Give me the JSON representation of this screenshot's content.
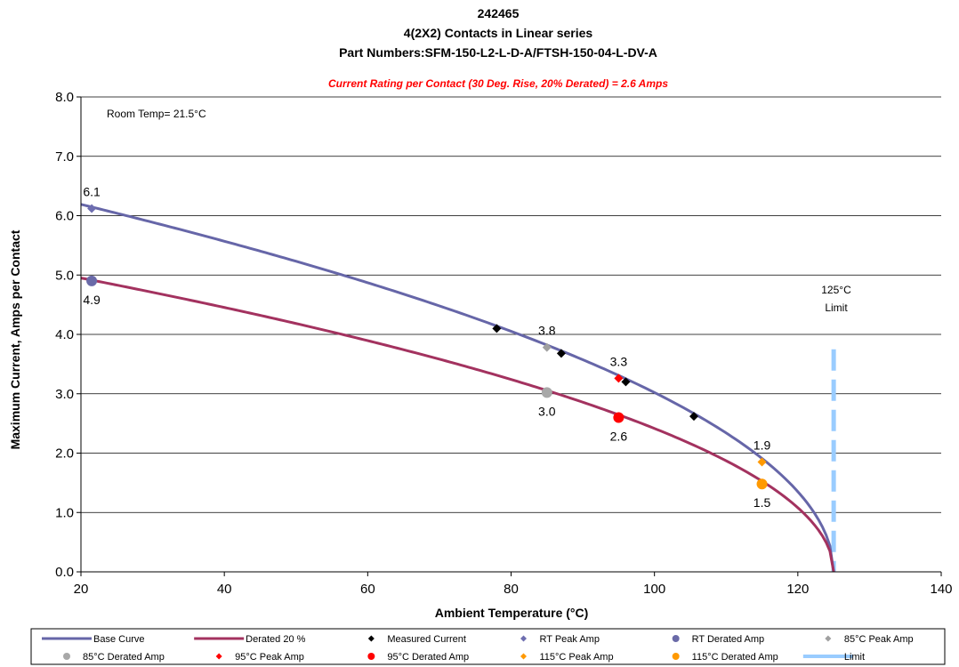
{
  "chart_data": {
    "type": "line",
    "title_lines": [
      "242465",
      "4(2X2) Contacts in Linear series",
      "Part Numbers:SFM-150-L2-L-D-A/FTSH-150-04-L-DV-A"
    ],
    "rating_note": "Current Rating per Contact (30 Deg. Rise, 20% Derated)  = 2.6 Amps",
    "room_temp_note": "Room Temp= 21.5°C",
    "limit_note": [
      "125°C",
      "Limit"
    ],
    "xlabel": "Ambient Temperature (°C)",
    "ylabel": "Maximum Current, Amps per Contact",
    "xlim": [
      20,
      140
    ],
    "ylim": [
      0,
      8
    ],
    "x_ticks": [
      20,
      40,
      60,
      80,
      100,
      120,
      140
    ],
    "x_tick_labels": [
      "20",
      "40",
      "60",
      "80",
      "100",
      "120",
      "140"
    ],
    "y_ticks": [
      0,
      1,
      2,
      3,
      4,
      5,
      6,
      7,
      8
    ],
    "y_tick_labels": [
      "0.0",
      "1.0",
      "2.0",
      "3.0",
      "4.0",
      "5.0",
      "6.0",
      "7.0",
      "8.0"
    ],
    "grid": "horizontal",
    "legend_position": "bottom",
    "series": [
      {
        "name": "Base Curve",
        "kind": "curve",
        "color": "#6666a8",
        "x0": 20,
        "y0": 6.19,
        "x_end": 125,
        "exponent": 0.5
      },
      {
        "name": "Derated 20 %",
        "kind": "curve",
        "color": "#a3325f",
        "x0": 20,
        "y0": 4.95,
        "x_end": 125,
        "exponent": 0.5
      },
      {
        "name": "Measured Current",
        "kind": "diamond",
        "color": "#000000",
        "points": [
          [
            78,
            4.1
          ],
          [
            87,
            3.68
          ],
          [
            96,
            3.2
          ],
          [
            105.5,
            2.62
          ]
        ]
      },
      {
        "name": "RT Peak Amp",
        "kind": "diamond",
        "color": "#6e6eb0",
        "points": [
          [
            21.5,
            6.12
          ]
        ]
      },
      {
        "name": "RT Derated Amp",
        "kind": "circle",
        "color": "#6a6aa8",
        "points": [
          [
            21.5,
            4.9
          ]
        ]
      },
      {
        "name": "85°C Peak Amp",
        "kind": "diamond",
        "color": "#a0a0a0",
        "points": [
          [
            85,
            3.78
          ]
        ]
      },
      {
        "name": "85°C Derated Amp",
        "kind": "circle",
        "color": "#a8a8a8",
        "points": [
          [
            85,
            3.02
          ]
        ]
      },
      {
        "name": "95°C Peak Amp",
        "kind": "diamond",
        "color": "#ff0000",
        "points": [
          [
            95,
            3.26
          ]
        ]
      },
      {
        "name": "95°C Derated Amp",
        "kind": "circle",
        "color": "#ff0000",
        "points": [
          [
            95,
            2.6
          ]
        ]
      },
      {
        "name": "115°C Peak Amp",
        "kind": "diamond",
        "color": "#ff9900",
        "points": [
          [
            115,
            1.85
          ]
        ]
      },
      {
        "name": "115°C Derated Amp",
        "kind": "circle",
        "color": "#ff9900",
        "points": [
          [
            115,
            1.48
          ]
        ]
      },
      {
        "name": "Limit",
        "kind": "vline",
        "color": "#99ccff",
        "x": 125,
        "y_range": [
          0,
          3.75
        ]
      }
    ],
    "data_labels": [
      {
        "text": "6.1",
        "x": 21.5,
        "y": 6.12,
        "pos": "above"
      },
      {
        "text": "4.9",
        "x": 21.5,
        "y": 4.9,
        "pos": "below"
      },
      {
        "text": "3.8",
        "x": 85,
        "y": 3.78,
        "pos": "above"
      },
      {
        "text": "3.0",
        "x": 85,
        "y": 3.02,
        "pos": "below"
      },
      {
        "text": "3.3",
        "x": 95,
        "y": 3.26,
        "pos": "above"
      },
      {
        "text": "2.6",
        "x": 95,
        "y": 2.6,
        "pos": "below"
      },
      {
        "text": "1.9",
        "x": 115,
        "y": 1.85,
        "pos": "above"
      },
      {
        "text": "1.5",
        "x": 115,
        "y": 1.48,
        "pos": "below"
      }
    ]
  }
}
